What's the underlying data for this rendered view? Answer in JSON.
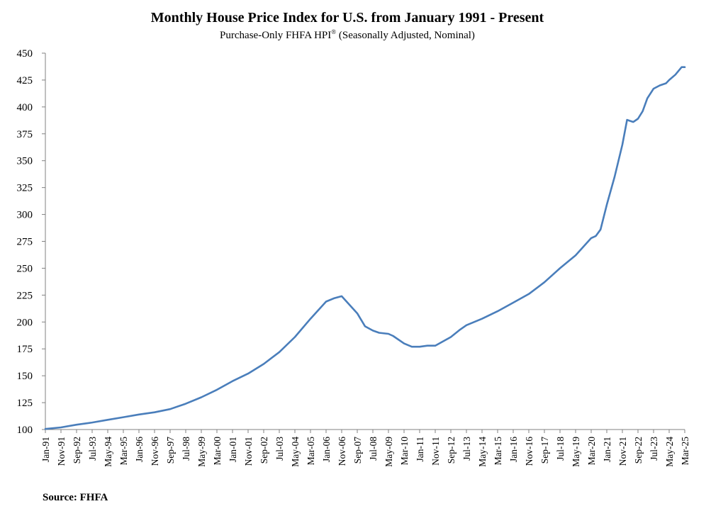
{
  "chart_data": {
    "type": "line",
    "title": "Monthly House Price Index for U.S. from January 1991 - Present",
    "subtitle": "Purchase-Only FHFA HPI",
    "subtitle_mark": "®",
    "subtitle_suffix": " (Seasonally Adjusted, Nominal)",
    "source": "Source: FHFA",
    "xlabel": "",
    "ylabel": "",
    "ylim": [
      100,
      450
    ],
    "yticks": [
      100,
      125,
      150,
      175,
      200,
      225,
      250,
      275,
      300,
      325,
      350,
      375,
      400,
      425,
      450
    ],
    "x_tick_labels": [
      "Jan-91",
      "Nov-91",
      "Sep-92",
      "Jul-93",
      "May-94",
      "Mar-95",
      "Jan-96",
      "Nov-96",
      "Sep-97",
      "Jul-98",
      "May-99",
      "Mar-00",
      "Jan-01",
      "Nov-01",
      "Sep-02",
      "Jul-03",
      "May-04",
      "Mar-05",
      "Jan-06",
      "Nov-06",
      "Sep-07",
      "Jul-08",
      "May-09",
      "Mar-10",
      "Jan-11",
      "Nov-11",
      "Sep-12",
      "Jul-13",
      "May-14",
      "Mar-15",
      "Jan-16",
      "Nov-16",
      "Sep-17",
      "Jul-18",
      "May-19",
      "Mar-20",
      "Jan-21",
      "Nov-21",
      "Sep-22",
      "Jul-23",
      "May-24",
      "Mar-25"
    ],
    "grid": false,
    "line_color": "#4a7ebb",
    "series": [
      {
        "x": [
          "1991-01",
          "1991-11",
          "1992-09",
          "1993-07",
          "1994-05",
          "1995-03",
          "1996-01",
          "1996-11",
          "1997-09",
          "1998-07",
          "1999-05",
          "2000-03",
          "2001-01",
          "2001-11",
          "2002-09",
          "2003-07",
          "2004-05",
          "2005-03",
          "2006-01",
          "2006-06",
          "2006-11",
          "2007-04",
          "2007-09",
          "2008-02",
          "2008-07",
          "2008-11",
          "2009-05",
          "2009-08",
          "2010-03",
          "2010-08",
          "2011-01",
          "2011-06",
          "2011-11",
          "2012-09",
          "2013-03",
          "2013-07",
          "2014-05",
          "2015-03",
          "2016-01",
          "2016-11",
          "2017-09",
          "2018-07",
          "2019-05",
          "2020-03",
          "2020-06",
          "2020-09",
          "2021-01",
          "2021-06",
          "2021-11",
          "2022-02",
          "2022-06",
          "2022-09",
          "2022-12",
          "2023-03",
          "2023-07",
          "2023-11",
          "2024-03",
          "2024-05",
          "2024-09",
          "2025-01",
          "2025-03"
        ],
        "values": [
          100.5,
          102,
          104.5,
          106.5,
          109,
          111.5,
          114,
          116,
          119,
          124,
          130,
          137,
          145,
          152,
          161,
          172,
          186,
          203,
          219,
          222,
          224,
          216,
          208,
          196,
          192,
          190,
          189,
          187,
          180,
          177,
          177,
          178,
          178,
          186,
          193,
          197,
          203,
          210,
          218,
          226,
          237,
          250,
          262,
          278,
          280,
          286,
          309,
          335,
          365,
          388,
          386,
          389,
          396,
          408,
          417,
          420,
          422,
          425,
          430,
          437,
          437
        ]
      }
    ]
  }
}
